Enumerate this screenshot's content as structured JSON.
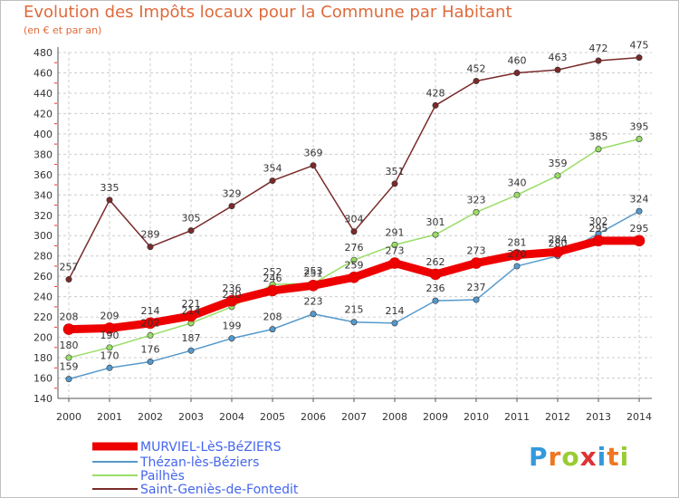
{
  "chart_data": {
    "type": "line",
    "title": "Evolution des Impôts locaux pour la Commune par Habitant",
    "subtitle": "(en € et par an)",
    "xlabel": "",
    "ylabel": "",
    "x": [
      "2000",
      "2001",
      "2002",
      "2003",
      "2004",
      "2005",
      "2006",
      "2007",
      "2008",
      "2009",
      "2010",
      "2011",
      "2012",
      "2013",
      "2014"
    ],
    "ylim": [
      140,
      480
    ],
    "yticks": [
      140,
      160,
      180,
      200,
      220,
      240,
      260,
      280,
      300,
      320,
      340,
      360,
      380,
      400,
      420,
      440,
      460,
      480
    ],
    "grid": "horizontal dashed",
    "legend_position": "bottom-left",
    "series": [
      {
        "name": "Saint-Geniès-de-Fontedit",
        "color": "#7a2a2a",
        "values": [
          257,
          335,
          289,
          305,
          329,
          354,
          369,
          304,
          351,
          428,
          452,
          460,
          463,
          472,
          475
        ]
      },
      {
        "name": "Pailhès",
        "color": "#99dd66",
        "values": [
          180,
          190,
          202,
          214,
          230,
          252,
          253,
          276,
          291,
          301,
          323,
          340,
          359,
          385,
          395
        ]
      },
      {
        "name": "Thézan-lès-Béziers",
        "color": "#5599cc",
        "values": [
          159,
          170,
          176,
          187,
          199,
          208,
          223,
          215,
          214,
          236,
          237,
          270,
          280,
          302,
          324
        ]
      },
      {
        "name": "MURVIEL-LèS-BéZIERS",
        "color": "#ee0000",
        "values": [
          208,
          209,
          214,
          221,
          236,
          246,
          251,
          259,
          273,
          262,
          273,
          281,
          284,
          295,
          295
        ]
      }
    ],
    "data_labels_series": [
      {
        "values": [
          257,
          335,
          289,
          305,
          329,
          354,
          369,
          304,
          351,
          428,
          452,
          460,
          463,
          472,
          475
        ]
      },
      {
        "values": [
          180,
          190,
          202,
          214,
          230,
          252,
          253,
          276,
          291,
          301,
          323,
          340,
          359,
          385,
          395
        ]
      },
      {
        "values": [
          159,
          170,
          176,
          187,
          199,
          208,
          223,
          215,
          214,
          236,
          237,
          270,
          280,
          302,
          324
        ]
      },
      {
        "values": [
          208,
          209,
          214,
          221,
          236,
          246,
          251,
          259,
          273,
          262,
          273,
          281,
          284,
          295,
          295
        ]
      }
    ]
  },
  "legend": [
    {
      "label": "MURVIEL-LèS-BéZIERS",
      "color": "#ee0000"
    },
    {
      "label": "Thézan-lès-Béziers",
      "color": "#5599cc"
    },
    {
      "label": "Pailhès",
      "color": "#99dd66"
    },
    {
      "label": "Saint-Geniès-de-Fontedit",
      "color": "#7a2a2a"
    }
  ],
  "logo": {
    "letters": [
      "P",
      "r",
      "o",
      "x",
      "i",
      "t",
      "i"
    ],
    "colors": [
      "#3399dd",
      "#ee7722",
      "#99cc33",
      "#dd3333",
      "#3399dd",
      "#ee7722",
      "#99cc33"
    ]
  }
}
